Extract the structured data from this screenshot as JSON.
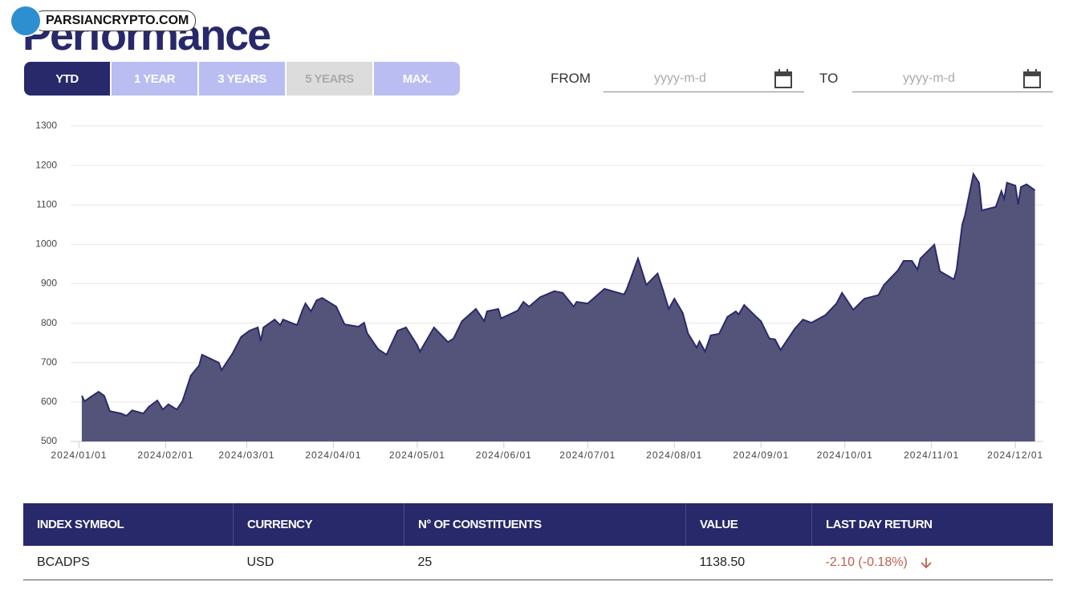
{
  "watermark": "PARSIANCRYPTO.COM",
  "header": {
    "title": "Performance"
  },
  "tabs": [
    "YTD",
    "1 YEAR",
    "3 YEARS",
    "5 YEARS",
    "MAX."
  ],
  "date_range": {
    "from_label": "FROM",
    "from_placeholder": "yyyy-m-d",
    "to_label": "TO",
    "to_placeholder": "yyyy-m-d"
  },
  "chart_data": {
    "type": "area",
    "x": [
      "2024/01/02",
      "2024/01/03",
      "2024/01/05",
      "2024/01/08",
      "2024/01/10",
      "2024/01/12",
      "2024/01/16",
      "2024/01/18",
      "2024/01/20",
      "2024/01/24",
      "2024/01/26",
      "2024/01/29",
      "2024/01/31",
      "2024/02/02",
      "2024/02/05",
      "2024/02/07",
      "2024/02/10",
      "2024/02/13",
      "2024/02/14",
      "2024/02/20",
      "2024/02/21",
      "2024/02/25",
      "2024/02/28",
      "2024/03/02",
      "2024/03/05",
      "2024/03/06",
      "2024/03/07",
      "2024/03/11",
      "2024/03/13",
      "2024/03/14",
      "2024/03/19",
      "2024/03/21",
      "2024/03/22",
      "2024/03/24",
      "2024/03/26",
      "2024/03/28",
      "2024/04/02",
      "2024/04/05",
      "2024/04/10",
      "2024/04/12",
      "2024/04/13",
      "2024/04/17",
      "2024/04/20",
      "2024/04/24",
      "2024/04/27",
      "2024/05/01",
      "2024/05/02",
      "2024/05/07",
      "2024/05/12",
      "2024/05/14",
      "2024/05/17",
      "2024/05/22",
      "2024/05/25",
      "2024/05/26",
      "2024/05/30",
      "2024/05/31",
      "2024/06/06",
      "2024/06/08",
      "2024/06/10",
      "2024/06/14",
      "2024/06/19",
      "2024/06/22",
      "2024/06/26",
      "2024/06/27",
      "2024/07/01",
      "2024/07/07",
      "2024/07/14",
      "2024/07/15",
      "2024/07/19",
      "2024/07/22",
      "2024/07/26",
      "2024/07/28",
      "2024/07/30",
      "2024/08/01",
      "2024/08/04",
      "2024/08/06",
      "2024/08/09",
      "2024/08/10",
      "2024/08/12",
      "2024/08/14",
      "2024/08/17",
      "2024/08/20",
      "2024/08/23",
      "2024/08/24",
      "2024/08/26",
      "2024/08/30",
      "2024/09/01",
      "2024/09/04",
      "2024/09/06",
      "2024/09/08",
      "2024/09/13",
      "2024/09/16",
      "2024/09/19",
      "2024/09/24",
      "2024/09/28",
      "2024/09/30",
      "2024/10/04",
      "2024/10/08",
      "2024/10/13",
      "2024/10/15",
      "2024/10/20",
      "2024/10/22",
      "2024/10/25",
      "2024/10/27",
      "2024/10/28",
      "2024/11/02",
      "2024/11/04",
      "2024/11/09",
      "2024/11/10",
      "2024/11/12",
      "2024/11/13",
      "2024/11/16",
      "2024/11/18",
      "2024/11/19",
      "2024/11/24",
      "2024/11/26",
      "2024/11/27",
      "2024/11/28",
      "2024/12/01",
      "2024/12/02",
      "2024/12/03",
      "2024/12/05",
      "2024/12/08"
    ],
    "series": [
      {
        "color": "#2b2a6b",
        "fill": "#54547a",
        "values": [
          616,
          602,
          612,
          626,
          616,
          577,
          571,
          565,
          579,
          571,
          588,
          604,
          581,
          594,
          581,
          602,
          667,
          693,
          720,
          700,
          681,
          724,
          765,
          781,
          789,
          754,
          789,
          809,
          795,
          809,
          795,
          834,
          850,
          830,
          858,
          864,
          842,
          797,
          791,
          801,
          775,
          734,
          720,
          781,
          789,
          744,
          728,
          789,
          752,
          761,
          805,
          836,
          805,
          830,
          836,
          812,
          832,
          854,
          842,
          866,
          881,
          877,
          842,
          854,
          850,
          887,
          873,
          887,
          964,
          897,
          926,
          883,
          836,
          862,
          826,
          773,
          738,
          754,
          728,
          769,
          773,
          816,
          830,
          822,
          846,
          818,
          805,
          761,
          759,
          732,
          785,
          809,
          801,
          820,
          850,
          877,
          834,
          862,
          871,
          897,
          934,
          958,
          958,
          936,
          964,
          999,
          932,
          911,
          936,
          1050,
          1074,
          1178,
          1156,
          1086,
          1095,
          1135,
          1115,
          1156,
          1149,
          1101,
          1145,
          1152,
          1137
        ]
      }
    ],
    "xlim": [
      "2023/12/29",
      "2024/12/11"
    ],
    "xticks": [
      "2024/01/01",
      "2024/02/01",
      "2024/03/01",
      "2024/04/01",
      "2024/05/01",
      "2024/06/01",
      "2024/07/01",
      "2024/08/01",
      "2024/09/01",
      "2024/10/01",
      "2024/11/01",
      "2024/12/01"
    ],
    "ylim": [
      500,
      1300
    ],
    "yticks": [
      500,
      600,
      700,
      800,
      900,
      1000,
      1100,
      1200,
      1300
    ],
    "grid": true
  },
  "table": {
    "columns": [
      "INDEX SYMBOL",
      "CURRENCY",
      "N° OF CONSTITUENTS",
      "VALUE",
      "LAST DAY RETURN"
    ],
    "rows": [
      [
        "BCADPS",
        "USD",
        "25",
        "1138.50",
        "-2.10 (-0.18%)"
      ]
    ]
  }
}
